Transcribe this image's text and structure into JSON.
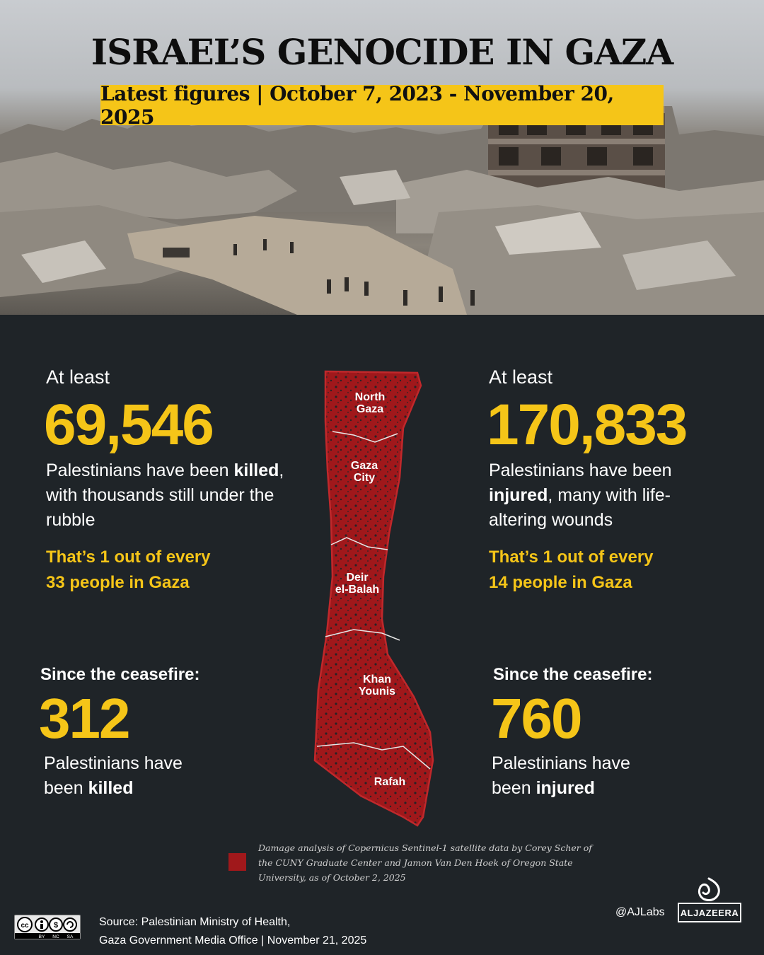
{
  "header": {
    "title": "ISRAEL’S GENOCIDE IN GAZA",
    "subtitle": "Latest figures | October 7, 2023 - November 20, 2025"
  },
  "killed": {
    "lead": "At least",
    "number": "69,546",
    "desc_pre": "Palestinians have been ",
    "desc_bold": "killed",
    "desc_post": ", with thousands still under the rubble",
    "ratio_line1": "That’s 1 out of every",
    "ratio_line2": "33 people in Gaza",
    "since_label": "Since the ceasefire:",
    "since_number": "312",
    "since_desc_pre": "Palestinians have been ",
    "since_desc_bold": "killed"
  },
  "injured": {
    "lead": "At least",
    "number": "170,833",
    "desc_pre": "Palestinians have been ",
    "desc_bold": "injured",
    "desc_post": ", many with life-altering wounds",
    "ratio_line1": "That’s 1 out of every",
    "ratio_line2": "14 people in Gaza",
    "since_label": "Since the ceasefire:",
    "since_number": "760",
    "since_desc_pre": "Palestinians have been ",
    "since_desc_bold": "injured"
  },
  "map": {
    "regions": [
      {
        "line1": "North",
        "line2": "Gaza"
      },
      {
        "line1": "Gaza",
        "line2": "City"
      },
      {
        "line1": "Deir",
        "line2": "el-Balah"
      },
      {
        "line1": "Khan",
        "line2": "Younis"
      },
      {
        "line1": "Rafah",
        "line2": ""
      }
    ],
    "damage_color": "#a0181b",
    "outline_color": "#c0282b"
  },
  "legend": {
    "text": "Damage analysis of Copernicus Sentinel-1 satellite data by  Corey Scher of the CUNY Graduate Center and Jamon Van Den Hoek of Oregon State University, as of  October 2, 2025"
  },
  "footer": {
    "cc_labels": [
      "BY",
      "NC",
      "SA"
    ],
    "source_line1": "Source:  Palestinian Ministry of Health,",
    "source_line2": "Gaza Government Media Office   |   November 21, 2025",
    "handle": "@AJLabs",
    "brand": "ALJAZEERA"
  },
  "colors": {
    "accent": "#f5c518",
    "background": "#1f2428"
  }
}
